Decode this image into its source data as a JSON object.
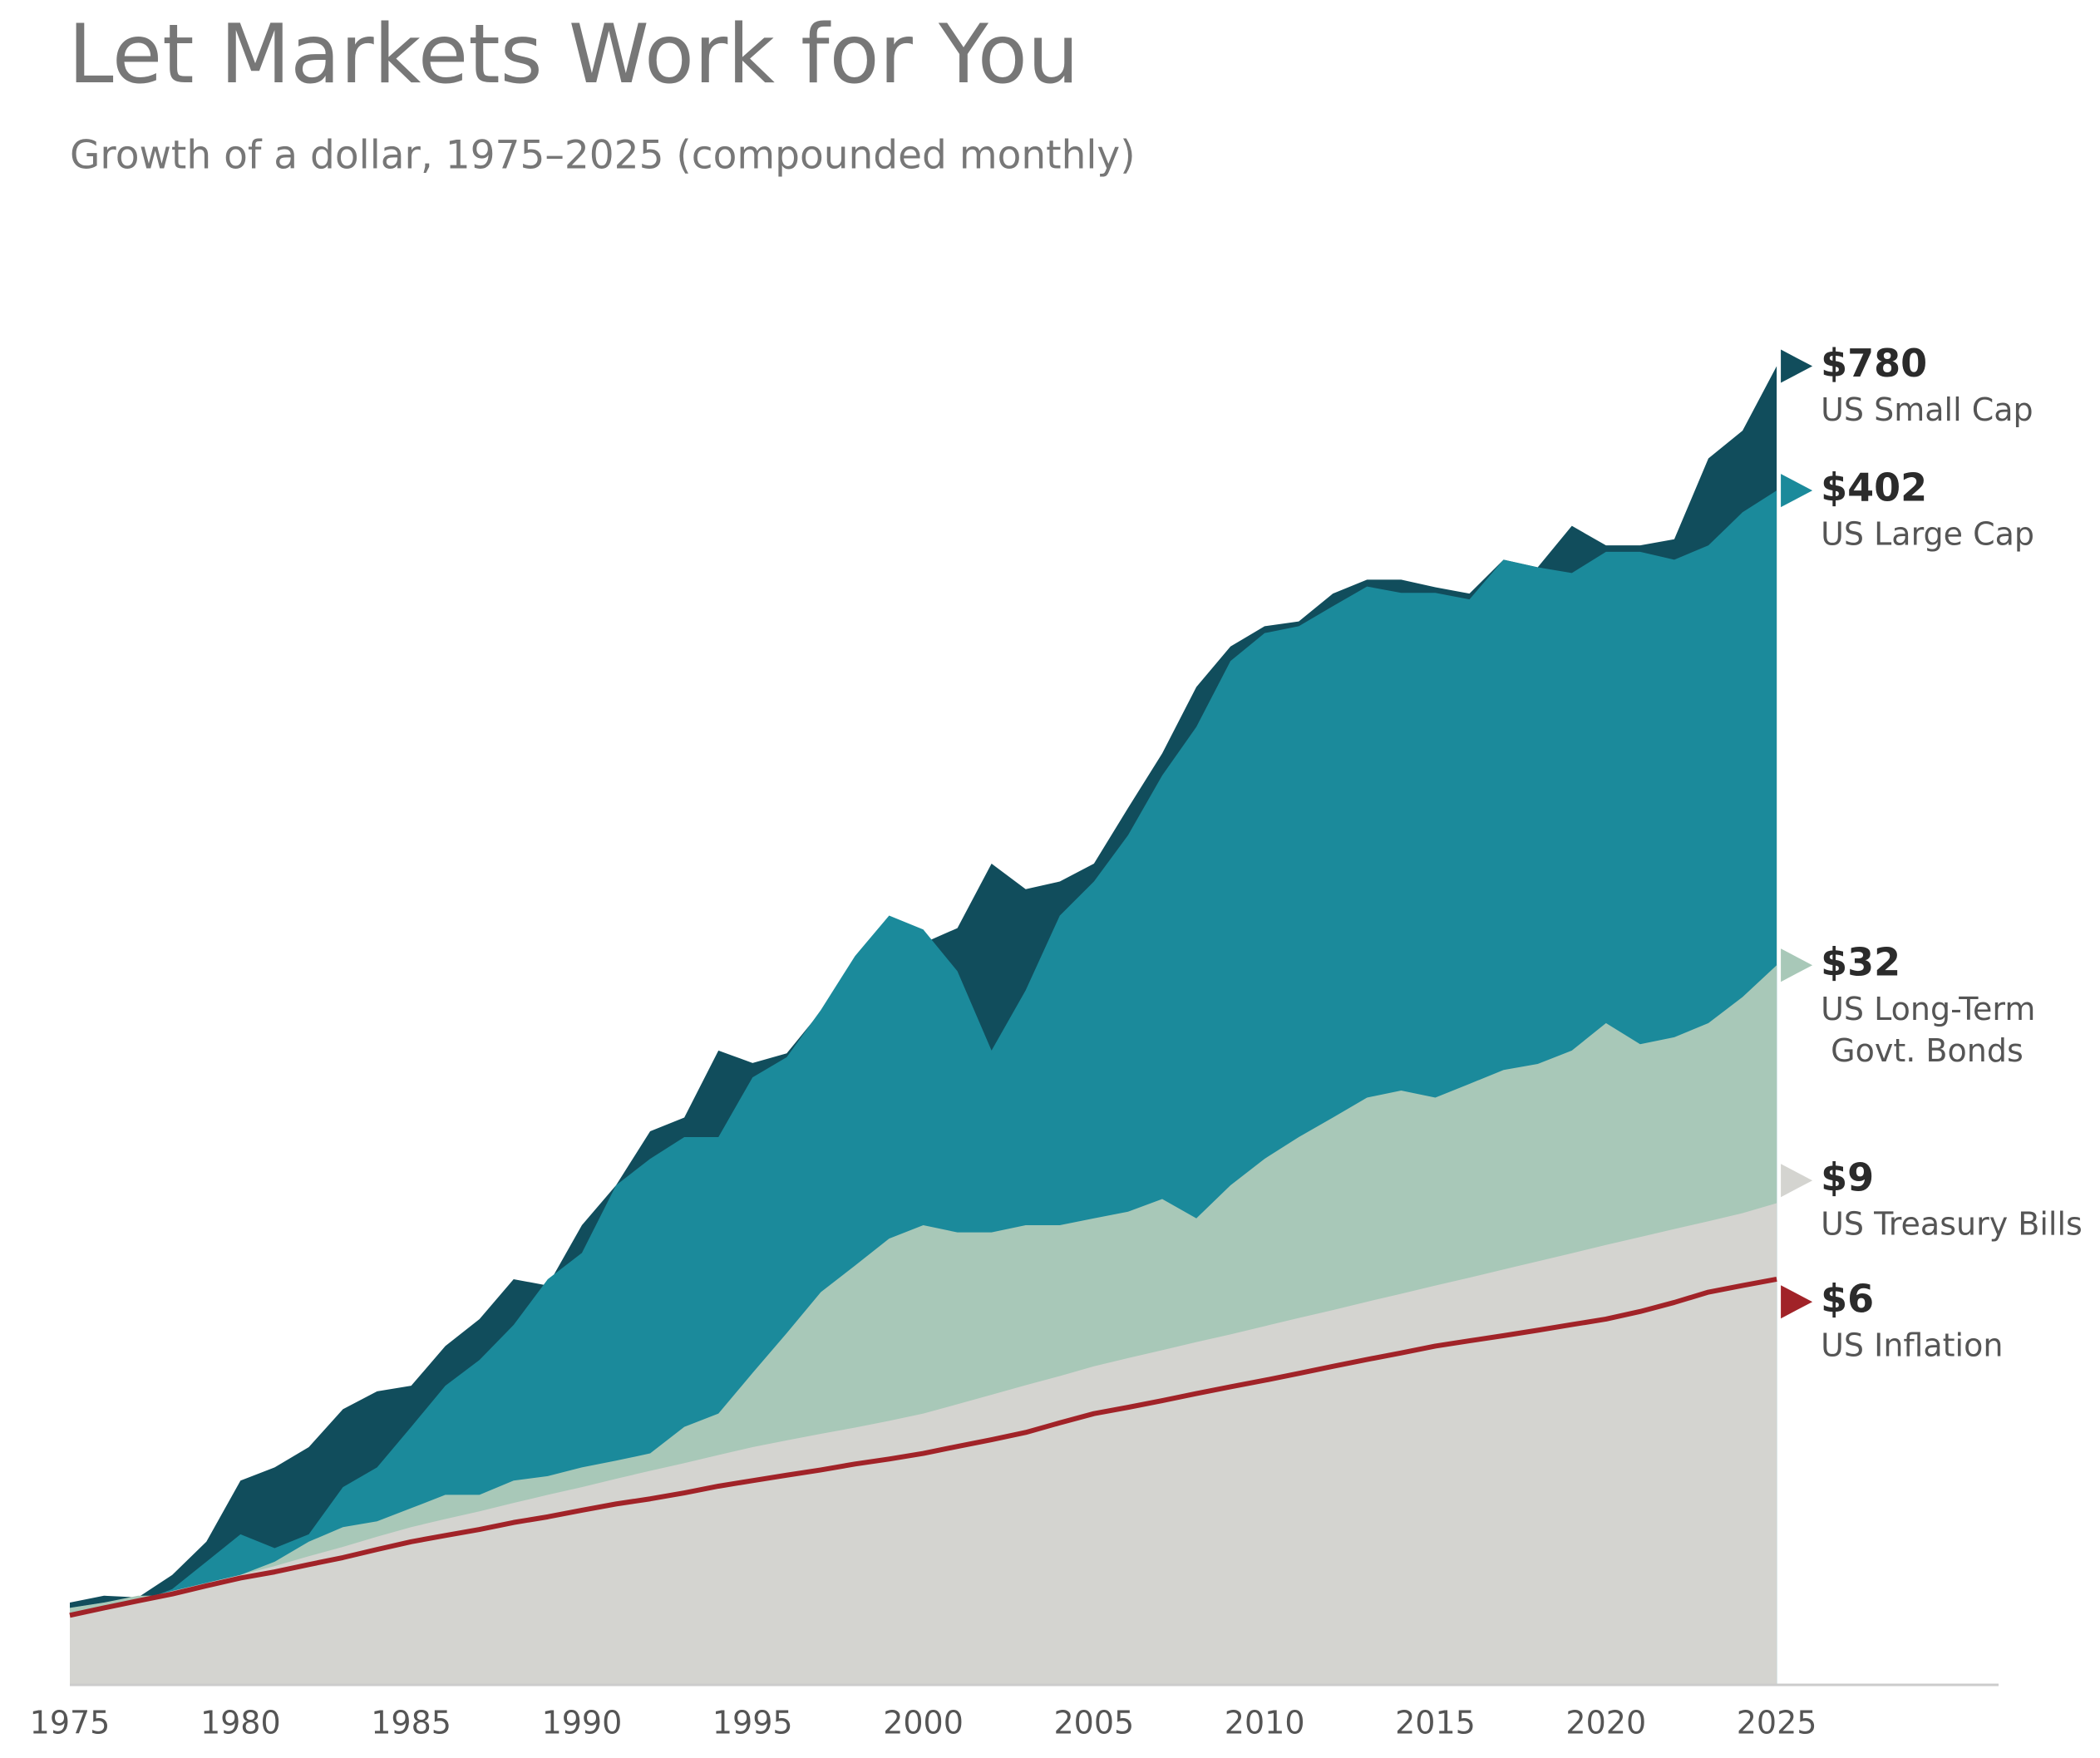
{
  "chart_data": {
    "type": "area",
    "title": "Let Markets Work for You",
    "subtitle": "Growth of a dollar, 1975–2025 (compounded monthly)",
    "log_scale": true,
    "xlim": [
      1975,
      2031.5
    ],
    "ylim": [
      0.69,
      1500
    ],
    "xticks": [
      1975,
      1980,
      1985,
      1990,
      1995,
      2000,
      2005,
      2010,
      2015,
      2020,
      2025
    ],
    "x": [
      1975,
      1976,
      1977,
      1978,
      1979,
      1980,
      1981,
      1982,
      1983,
      1984,
      1985,
      1986,
      1987,
      1988,
      1989,
      1990,
      1991,
      1992,
      1993,
      1994,
      1995,
      1996,
      1997,
      1998,
      1999,
      2000,
      2001,
      2002,
      2003,
      2004,
      2005,
      2006,
      2007,
      2008,
      2009,
      2010,
      2011,
      2012,
      2013,
      2014,
      2015,
      2016,
      2017,
      2018,
      2019,
      2020,
      2021,
      2022,
      2023,
      2024,
      2025
    ],
    "series": [
      {
        "name": "US Small Cap",
        "kind": "area",
        "color": "#114d5c",
        "value_labels": {
          "50": "$780"
        },
        "values": [
          1.07,
          1.11,
          1.1,
          1.24,
          1.48,
          2.05,
          2.2,
          2.45,
          3.0,
          3.3,
          3.4,
          4.2,
          4.85,
          6.0,
          5.8,
          8.0,
          9.9,
          13.2,
          14.2,
          20.3,
          19,
          20,
          25,
          30,
          32.4,
          36,
          39,
          55,
          48,
          50,
          55,
          74,
          99,
          141,
          175,
          195,
          200,
          232,
          250,
          250,
          240,
          232,
          278,
          267,
          333,
          300,
          300,
          310,
          477,
          553,
          780
        ]
      },
      {
        "name": "US Large Cap",
        "kind": "area",
        "color": "#1b8a9b",
        "value_labels": {
          "50": "$402"
        },
        "values": [
          1.04,
          1.07,
          1.07,
          1.15,
          1.33,
          1.54,
          1.43,
          1.54,
          1.98,
          2.2,
          2.73,
          3.4,
          3.9,
          4.7,
          6.0,
          6.9,
          9.9,
          11.4,
          12.8,
          12.8,
          17.6,
          19.6,
          25.2,
          33.6,
          41.7,
          38.7,
          31,
          20.3,
          28,
          41.7,
          50,
          64,
          88,
          114,
          162,
          188,
          195,
          217,
          241,
          233,
          233,
          225,
          278,
          267,
          259,
          290,
          290,
          278,
          300,
          358,
          402
        ]
      },
      {
        "name": "US Long-Term Govt. Bonds",
        "kind": "area",
        "color": "#a8c8b8",
        "value_labels": {
          "50": "$32"
        },
        "values": [
          1.04,
          1.07,
          1.11,
          1.11,
          1.15,
          1.24,
          1.33,
          1.48,
          1.6,
          1.65,
          1.77,
          1.9,
          1.9,
          2.05,
          2.1,
          2.2,
          2.28,
          2.37,
          2.73,
          2.93,
          3.64,
          4.5,
          5.6,
          6.45,
          7.45,
          8.0,
          7.7,
          7.7,
          8.0,
          8.0,
          8.3,
          8.6,
          9.2,
          8.3,
          9.9,
          11.4,
          12.8,
          14.2,
          15.8,
          16.4,
          15.8,
          17,
          18.3,
          18.9,
          20.3,
          23.5,
          21,
          21.8,
          23.5,
          27,
          32
        ]
      },
      {
        "name": "US Treasury Bills",
        "kind": "area",
        "color": "#d4d4d0",
        "value_labels": {
          "50": "$9"
        },
        "values": [
          1,
          1.044,
          1.09,
          1.138,
          1.188,
          1.24,
          1.3,
          1.37,
          1.44,
          1.52,
          1.6,
          1.67,
          1.74,
          1.82,
          1.9,
          1.98,
          2.07,
          2.16,
          2.25,
          2.35,
          2.45,
          2.54,
          2.63,
          2.72,
          2.82,
          2.93,
          3.08,
          3.24,
          3.41,
          3.58,
          3.77,
          3.94,
          4.11,
          4.29,
          4.47,
          4.67,
          4.88,
          5.09,
          5.32,
          5.55,
          5.8,
          6.05,
          6.32,
          6.6,
          6.89,
          7.2,
          7.51,
          7.84,
          8.17,
          8.53,
          9
        ]
      },
      {
        "name": "US Inflation",
        "kind": "line",
        "color": "#a12328",
        "value_labels": {
          "50": "$6"
        },
        "values": [
          1.0,
          1.04,
          1.08,
          1.12,
          1.17,
          1.22,
          1.26,
          1.31,
          1.36,
          1.42,
          1.48,
          1.53,
          1.58,
          1.64,
          1.69,
          1.75,
          1.81,
          1.86,
          1.92,
          1.99,
          2.05,
          2.11,
          2.17,
          2.24,
          2.3,
          2.37,
          2.46,
          2.55,
          2.65,
          2.79,
          2.93,
          3.03,
          3.14,
          3.26,
          3.38,
          3.5,
          3.63,
          3.77,
          3.91,
          4.05,
          4.2,
          4.32,
          4.44,
          4.57,
          4.71,
          4.85,
          5.05,
          5.3,
          5.6,
          5.8,
          6
        ]
      }
    ]
  }
}
